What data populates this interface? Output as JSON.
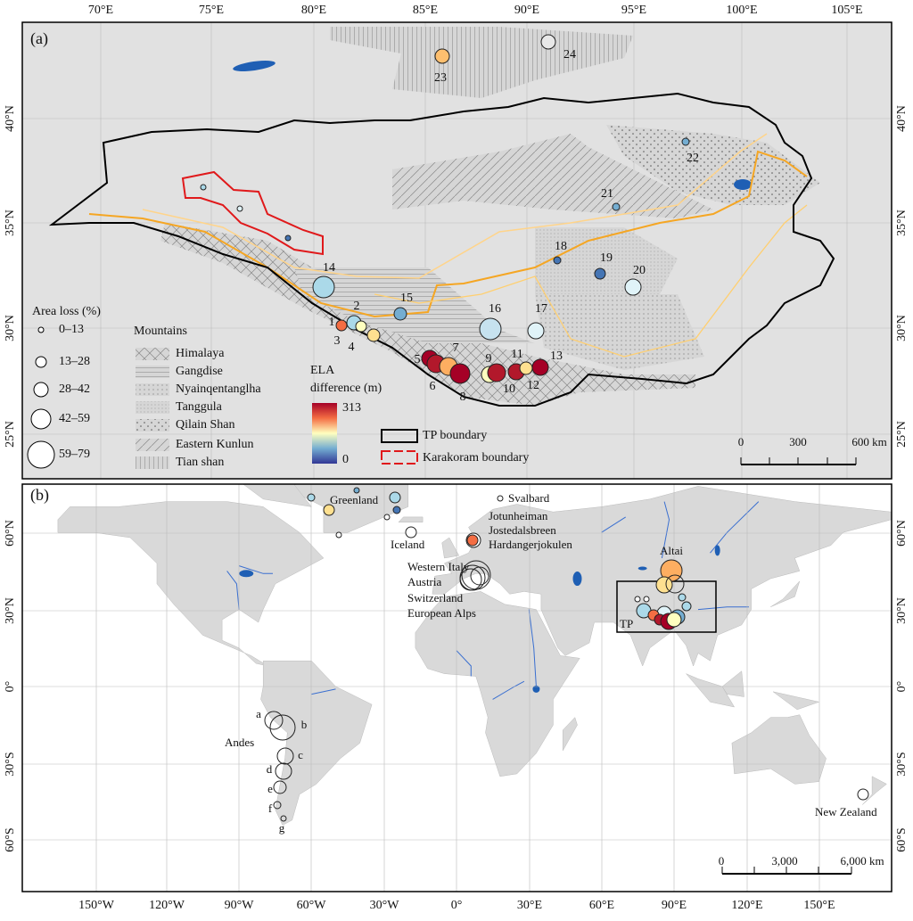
{
  "panel_a": {
    "label": "(a)",
    "lon_labels": [
      "70°E",
      "75°E",
      "80°E",
      "85°E",
      "90°E",
      "95°E",
      "100°E",
      "105°E"
    ],
    "lat_labels": [
      "40°N",
      "35°N",
      "30°N",
      "25°N"
    ],
    "site_labels": [
      "1",
      "2",
      "3",
      "4",
      "5",
      "6",
      "7",
      "8",
      "9",
      "10",
      "11",
      "12",
      "13",
      "14",
      "15",
      "16",
      "17",
      "18",
      "19",
      "20",
      "21",
      "22",
      "23",
      "24"
    ],
    "area_loss_legend": {
      "title": "Area loss (%)",
      "classes": [
        "0–13",
        "13–28",
        "28–42",
        "42–59",
        "59–79"
      ]
    },
    "mountains_legend": {
      "title": "Mountains",
      "items": [
        "Himalaya",
        "Gangdise",
        "Nyainqentanglha",
        "Tanggula",
        "Qilain Shan",
        "Eastern Kunlun",
        "Tian shan"
      ]
    },
    "ela_legend": {
      "title": [
        "ELA",
        "difference (m)"
      ],
      "max": 313,
      "min": 0
    },
    "boundary_legend": [
      "TP boundary",
      "Karakoram boundary"
    ],
    "scale_bar": [
      "0",
      "300",
      "600 km"
    ]
  },
  "panel_b": {
    "label": "(b)",
    "lon_labels": [
      "150°W",
      "120°W",
      "90°W",
      "60°W",
      "30°W",
      "0°",
      "30°E",
      "60°E",
      "90°E",
      "120°E",
      "150°E"
    ],
    "lat_labels": [
      "60°N",
      "30°N",
      "0°",
      "30°S",
      "60°S"
    ],
    "places": [
      "Greenland",
      "Svalbard",
      "Iceland",
      "Jotunheiman",
      "Jostedalsbreen",
      "Hardangerjokulen",
      "Western Italy",
      "Austria",
      "Switzerland",
      "European Alps",
      "Altai",
      "TP",
      "Andes",
      "New Zealand"
    ],
    "andes_sites": [
      "a",
      "b",
      "c",
      "d",
      "e",
      "f",
      "g"
    ],
    "scale_bar": [
      "0",
      "3,000",
      "6,000 km"
    ]
  }
}
